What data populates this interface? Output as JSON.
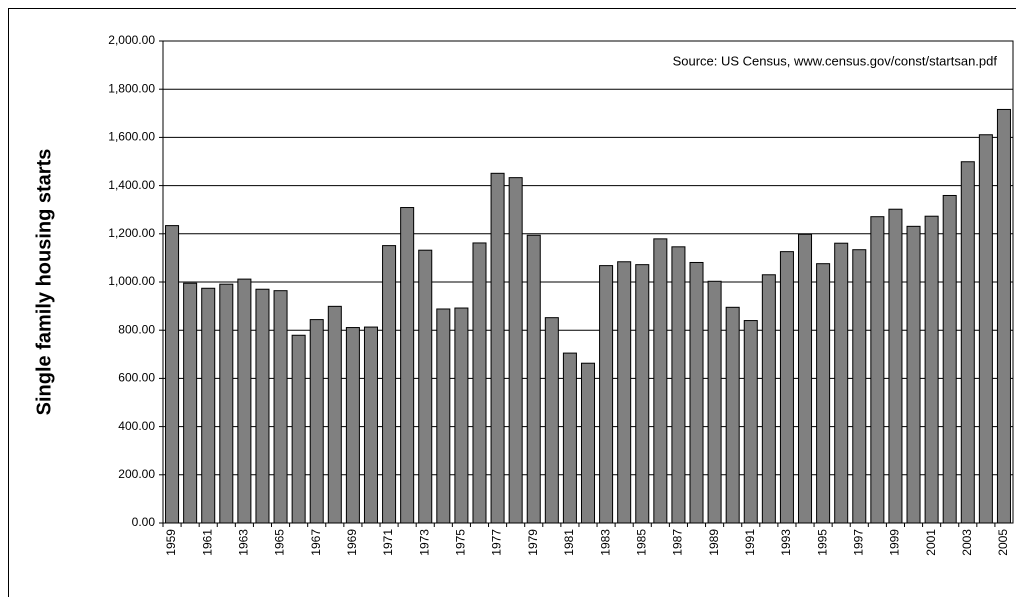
{
  "chart_data": {
    "type": "bar",
    "y_axis_label": "Single family housing starts",
    "annotation": "Source: US Census, www.census.gov/const/startsan.pdf",
    "categories": [
      "1959",
      null,
      "1961",
      null,
      "1963",
      null,
      "1965",
      null,
      "1967",
      null,
      "1969",
      null,
      "1971",
      null,
      "1973",
      null,
      "1975",
      null,
      "1977",
      null,
      "1979",
      null,
      "1981",
      null,
      "1983",
      null,
      "1985",
      null,
      "1987",
      null,
      "1989",
      null,
      "1991",
      null,
      "1993",
      null,
      "1995",
      null,
      "1997",
      null,
      "1999",
      null,
      "2001",
      null,
      "2003",
      null,
      "2005"
    ],
    "values": [
      1234,
      995,
      974,
      991,
      1012,
      970,
      964,
      779,
      844,
      899,
      811,
      813,
      1151,
      1309,
      1132,
      888,
      892,
      1162,
      1451,
      1433,
      1194,
      852,
      705,
      663,
      1068,
      1084,
      1072,
      1179,
      1146,
      1081,
      1003,
      895,
      840,
      1030,
      1126,
      1198,
      1076,
      1161,
      1134,
      1271,
      1302,
      1231,
      1273,
      1359,
      1499,
      1611,
      1716
    ],
    "color": "#808080",
    "ylim": [
      0,
      2000
    ],
    "yticks": [
      {
        "value": 0,
        "label": "0.00"
      },
      {
        "value": 200,
        "label": "200.00"
      },
      {
        "value": 400,
        "label": "400.00"
      },
      {
        "value": 600,
        "label": "600.00"
      },
      {
        "value": 800,
        "label": "800.00"
      },
      {
        "value": 1000,
        "label": "1,000.00"
      },
      {
        "value": 1200,
        "label": "1,200.00"
      },
      {
        "value": 1400,
        "label": "1,400.00"
      },
      {
        "value": 1600,
        "label": "1,600.00"
      },
      {
        "value": 1800,
        "label": "1,800.00"
      },
      {
        "value": 2000,
        "label": "2,000.00"
      }
    ],
    "grid": true
  }
}
